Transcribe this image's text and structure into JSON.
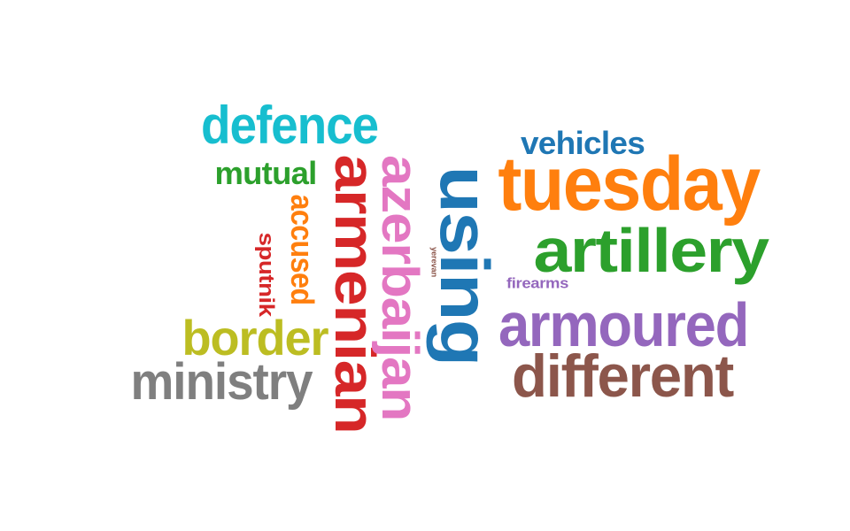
{
  "words": [
    {
      "text": "defence",
      "color": "#17becf"
    },
    {
      "text": "vehicles",
      "color": "#1f77b4"
    },
    {
      "text": "tuesday",
      "color": "#ff7f0e"
    },
    {
      "text": "mutual",
      "color": "#2ca02c"
    },
    {
      "text": "accused",
      "color": "#ff7f0e"
    },
    {
      "text": "sputnik",
      "color": "#d62728"
    },
    {
      "text": "armenian",
      "color": "#d62728"
    },
    {
      "text": "azerbaijan",
      "color": "#e377c2"
    },
    {
      "text": "using",
      "color": "#1f77b4"
    },
    {
      "text": "yerevan",
      "color": "#8c564b"
    },
    {
      "text": "artillery",
      "color": "#2ca02c"
    },
    {
      "text": "firearms",
      "color": "#9467bd"
    },
    {
      "text": "armoured",
      "color": "#9467bd"
    },
    {
      "text": "border",
      "color": "#bcbd22"
    },
    {
      "text": "ministry",
      "color": "#7f7f7f"
    },
    {
      "text": "different",
      "color": "#8c564b"
    }
  ]
}
